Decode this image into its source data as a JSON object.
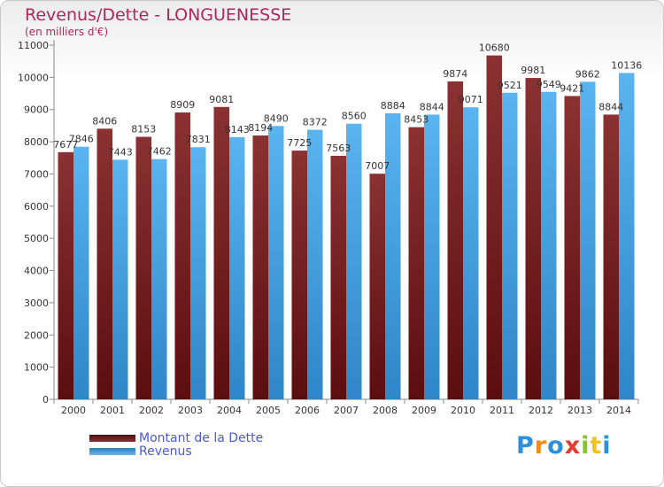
{
  "title": "Revenus/Dette - LONGUENESSE",
  "subtitle": "(en milliers d'€)",
  "legend": {
    "dette": "Montant de la Dette",
    "revenus": "Revenus"
  },
  "logo": "Proxiti",
  "colors": {
    "dette": "#7a2828",
    "revenus": "#4fa8e8",
    "title": "#b0285a",
    "legend_text": "#4a5ad8"
  },
  "chart_data": {
    "type": "bar",
    "categories": [
      "2000",
      "2001",
      "2002",
      "2003",
      "2004",
      "2005",
      "2006",
      "2007",
      "2008",
      "2009",
      "2010",
      "2011",
      "2012",
      "2013",
      "2014"
    ],
    "series": [
      {
        "name": "Montant de la Dette",
        "values": [
          7677,
          8406,
          8153,
          8909,
          9081,
          8194,
          7725,
          7563,
          7007,
          8453,
          9874,
          10680,
          9981,
          9421,
          8844
        ],
        "labels": [
          "7677",
          "8406",
          "8153",
          "8909",
          "9081",
          "8194",
          "7725",
          "7563",
          "7007",
          "8453",
          "9874",
          "10680",
          "9981",
          "9421",
          "8844"
        ]
      },
      {
        "name": "Revenus",
        "values": [
          7846,
          7443,
          7462,
          7831,
          8143,
          8490,
          8372,
          8560,
          8884,
          8844,
          9071,
          9521,
          9549,
          9862,
          10136
        ],
        "labels": [
          "7846",
          "7443",
          "7462",
          "7831",
          "8143",
          "8490",
          "8372",
          "8560",
          "8884",
          "8844",
          "9071",
          "9521",
          "9549",
          "9862",
          "10136"
        ]
      }
    ],
    "ylim": [
      0,
      11000
    ],
    "yticks": [
      0,
      1000,
      2000,
      3000,
      4000,
      5000,
      6000,
      7000,
      8000,
      9000,
      10000,
      11000
    ],
    "grid": false
  }
}
